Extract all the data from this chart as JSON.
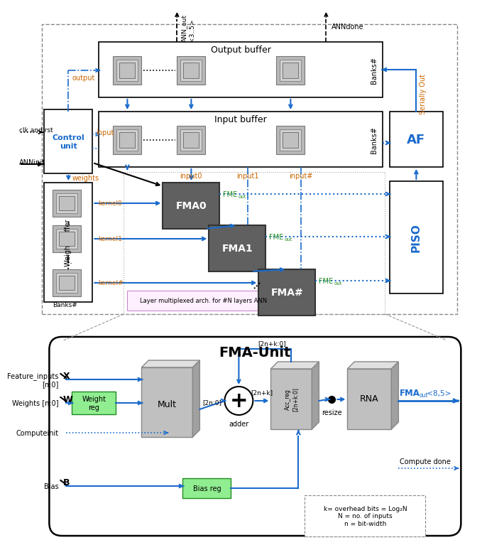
{
  "title_top": "Output buffer",
  "title_input": "Input buffer",
  "title_weight": "Weight buffer",
  "title_fma_unit": "FMA-Unit",
  "fma_labels": [
    "FMA0",
    "FMA1",
    "FMA#"
  ],
  "piso_label": "PISO",
  "af_label": "AF",
  "control_label": "Control\nunit",
  "mult_label": "Mult",
  "adder_label": "adder",
  "resize_label": "resize",
  "rna_label": "RNA",
  "weight_reg_label": "Weight\nreg",
  "bias_reg_label": "Bias reg",
  "ann_done_label": "ANNdone",
  "ann_init_label": "ANNinit",
  "clk_rst_label": "clk and rst",
  "serial_out_label": "Serially Out",
  "output_label": "output",
  "input_label": "input",
  "weights_label": "weights",
  "kernel0_label": "kernel0",
  "kernel1_label": "kernel1",
  "kernelN_label": "kernel#",
  "input0_label": "input0",
  "input1_label": "input1",
  "inputN_label": "input#",
  "banks_label": "Banks#",
  "layer_note": "Layer multiplexed arch. for #N layers ANN",
  "compute_init_label": "Computeinit",
  "compute_done_label": "Compute done",
  "feature_inputs_label": "Feature_inputs\n[n:0]",
  "weights_in_label": "Weights [n:0]",
  "bias_label": "Bias",
  "x_label": "X",
  "w_label": "W",
  "b_label": "B",
  "bus1_label": "[2n:0]",
  "bus2_label": "[2n+k]",
  "bus3_label": "[2n+k:0]",
  "acc_bus_label": "[2n+k:0]",
  "note_text": "k= overhead bits = Log₂N\nN = no. of inputs\nn = bit-width",
  "ann_out_rot_text": "ANN_out\n<3..5>",
  "bg_color": "#ffffff",
  "blue_color": "#1a6bcc",
  "orange_color": "#cc6600",
  "green_color": "#228b22",
  "green_box": "#90ee90",
  "fig_width": 6.4,
  "fig_height": 7.55
}
